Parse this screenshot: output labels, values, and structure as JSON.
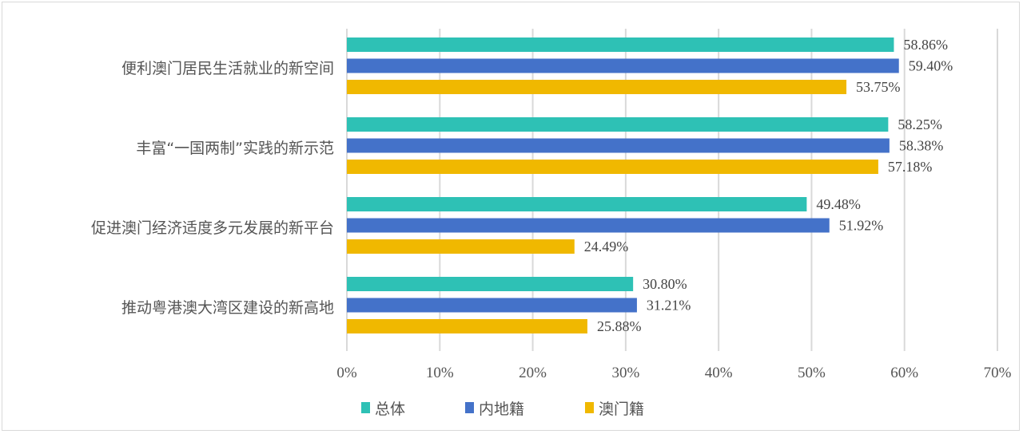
{
  "chart_data": {
    "type": "bar",
    "orientation": "horizontal",
    "categories": [
      "便利澳门居民生活就业的新空间",
      "丰富“一国两制”实践的新示范",
      "促进澳门经济适度多元发展的新平台",
      "推动粤港澳大湾区建设的新高地"
    ],
    "series": [
      {
        "name": "总体",
        "color": "#2ec1b5",
        "values": [
          58.86,
          58.25,
          49.48,
          30.8
        ],
        "labels": [
          "58.86%",
          "58.25%",
          "49.48%",
          "30.80%"
        ]
      },
      {
        "name": "内地籍",
        "color": "#4472c9",
        "values": [
          59.4,
          58.38,
          51.92,
          31.21
        ],
        "labels": [
          "59.40%",
          "58.38%",
          "51.92%",
          "31.21%"
        ]
      },
      {
        "name": "澳门籍",
        "color": "#f0b800",
        "values": [
          53.75,
          57.18,
          24.49,
          25.88
        ],
        "labels": [
          "53.75%",
          "57.18%",
          "24.49%",
          "25.88%"
        ]
      }
    ],
    "xlim": [
      0,
      70
    ],
    "xticks": [
      "0%",
      "10%",
      "20%",
      "30%",
      "40%",
      "50%",
      "60%",
      "70%"
    ],
    "grid": true,
    "legend": "bottom-left",
    "title": "",
    "xlabel": "",
    "ylabel": ""
  }
}
